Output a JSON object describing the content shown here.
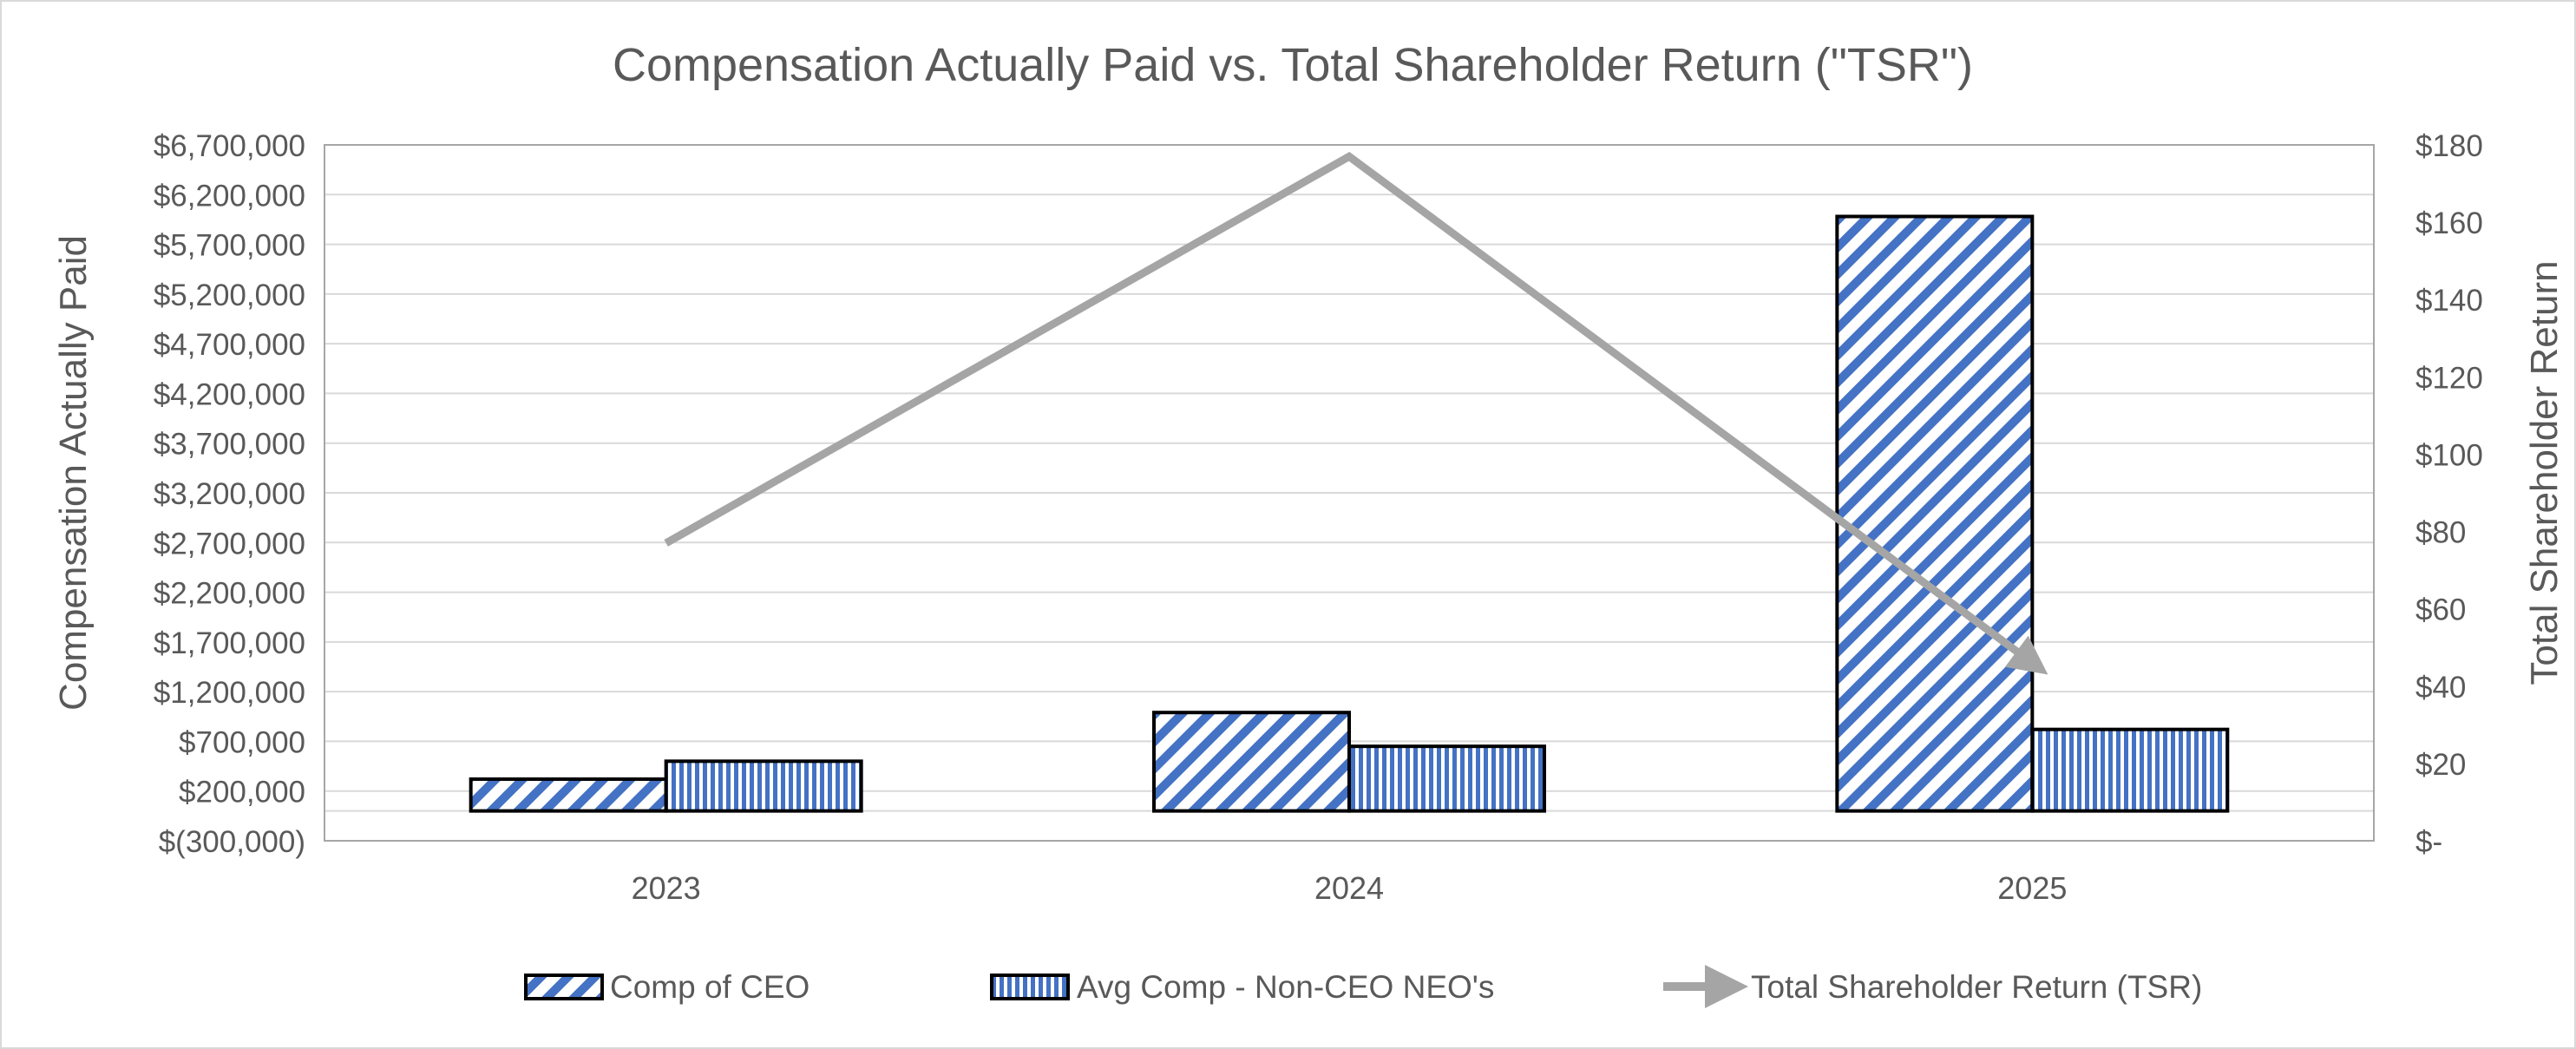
{
  "chart_data": {
    "type": "bar",
    "title": "Compensation Actually Paid vs. Total Shareholder Return (\"TSR\")",
    "categories": [
      "2023",
      "2024",
      "2025"
    ],
    "y_left": {
      "label": "Compensation Actually Paid",
      "range": [
        -300000,
        6700000
      ],
      "ticks": [
        -300000,
        200000,
        700000,
        1200000,
        1700000,
        2200000,
        2700000,
        3200000,
        3700000,
        4200000,
        4700000,
        5200000,
        5700000,
        6200000,
        6700000
      ],
      "tick_labels": [
        "$(300,000)",
        "$200,000",
        "$700,000",
        "$1,200,000",
        "$1,700,000",
        "$2,200,000",
        "$2,700,000",
        "$3,200,000",
        "$3,700,000",
        "$4,200,000",
        "$4,700,000",
        "$5,200,000",
        "$5,700,000",
        "$6,200,000",
        "$6,700,000"
      ]
    },
    "y_right": {
      "label": "Total Shareholder Return",
      "range": [
        0,
        180
      ],
      "ticks": [
        0,
        20,
        40,
        60,
        80,
        100,
        120,
        140,
        160,
        180
      ],
      "tick_labels": [
        "$-",
        "$20",
        "$40",
        "$60",
        "$80",
        "$100",
        "$120",
        "$140",
        "$160",
        "$180"
      ]
    },
    "series": [
      {
        "name": "Comp of CEO",
        "type": "bar",
        "axis": "left",
        "pattern": "diagonal",
        "values": [
          320000,
          990000,
          5980000
        ]
      },
      {
        "name": "Avg Comp - Non-CEO NEO's",
        "type": "bar",
        "axis": "left",
        "pattern": "vertical",
        "values": [
          500000,
          650000,
          820000
        ]
      },
      {
        "name": "Total Shareholder Return (TSR)",
        "type": "line",
        "axis": "right",
        "values": [
          77,
          177,
          46
        ]
      }
    ],
    "grid": true,
    "legend": "bottom",
    "colors": {
      "bar_fill": "#4472c4",
      "bar_stroke": "#000000",
      "line": "#a5a5a5",
      "grid": "#d9d9d9",
      "text": "#595959"
    }
  }
}
